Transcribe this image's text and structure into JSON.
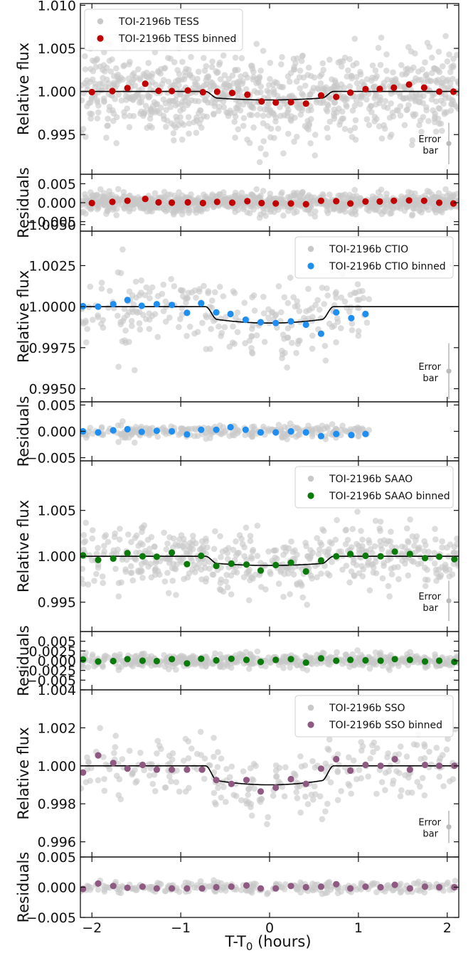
{
  "colors": {
    "raw": "#c8c8c8",
    "model": "#000000",
    "TESS": "#c00000",
    "CTIO": "#1e8ff0",
    "SAAO": "#0a7a0a",
    "SSO": "#8e5a82"
  },
  "xaxis": {
    "label": "T-T",
    "label_sub": "0",
    "label_suffix": " (hours)",
    "xlim": [
      -2.13,
      2.13
    ],
    "ticks": [
      -2,
      -1,
      0,
      1,
      2
    ],
    "tick_labels": [
      "−2",
      "−1",
      "0",
      "1",
      "2"
    ]
  },
  "error_bar_label": [
    "Error",
    "bar"
  ],
  "chart_data": [
    {
      "type": "scatter",
      "name": "TESS",
      "ylabel": "Relative flux",
      "res_ylabel": "Residuals",
      "ylim": [
        0.9904,
        1.0102
      ],
      "yticks": [
        0.995,
        1.0,
        1.005,
        1.01
      ],
      "ytick_labels": [
        "0.995",
        "1.000",
        "1.005",
        "1.010"
      ],
      "res_ylim": [
        -0.0075,
        0.0075
      ],
      "res_yticks": [
        -0.005,
        0.0,
        0.005
      ],
      "res_ytick_labels": [
        "−0.005",
        "0.000",
        "0.005"
      ],
      "legend": [
        "TOI-2196b TESS",
        "TOI-2196b TESS binned"
      ],
      "legend_placement": "top-left",
      "model": {
        "depth": 0.00098,
        "t1": 0.72,
        "ingress": 0.13
      },
      "raw_scatter_sigma": 0.0024,
      "raw_count": 900,
      "raw_xrange": [
        -2.13,
        2.13
      ],
      "error_bar_sigma": 0.0024,
      "binned": {
        "x": [
          -2.0,
          -1.77,
          -1.6,
          -1.4,
          -1.25,
          -1.1,
          -0.92,
          -0.75,
          -0.59,
          -0.42,
          -0.25,
          -0.09,
          0.07,
          0.24,
          0.41,
          0.58,
          0.75,
          0.91,
          1.08,
          1.24,
          1.4,
          1.57,
          1.74,
          1.91,
          2.07
        ],
        "y": [
          0.99993,
          1.00005,
          1.0004,
          1.0009,
          1.00008,
          1.00005,
          1.00012,
          0.99992,
          0.99997,
          0.99983,
          0.99963,
          0.99885,
          0.99872,
          0.99875,
          0.9986,
          0.99955,
          0.99937,
          0.99987,
          1.00027,
          1.0003,
          1.00045,
          1.0008,
          1.00045,
          0.99998,
          0.99998
        ],
        "res": [
          -0.0001,
          0.0002,
          0.0005,
          0.001,
          0.0001,
          0.0,
          0.0001,
          -0.0001,
          0.0002,
          0.0,
          0.0004,
          -0.0001,
          -0.0002,
          -0.0002,
          -0.0004,
          0.0005,
          0.0004,
          -0.0002,
          0.0003,
          0.0003,
          0.0005,
          0.0006,
          0.0005,
          0.0,
          -0.0002
        ]
      }
    },
    {
      "type": "scatter",
      "name": "CTIO",
      "ylabel": "Relative flux",
      "res_ylabel": "Residuals",
      "ylim": [
        0.9942,
        1.0046
      ],
      "yticks": [
        0.995,
        0.9975,
        1.0,
        1.0025,
        1.005
      ],
      "ytick_labels": [
        "0.9950",
        "0.9975",
        "1.0000",
        "1.0025",
        "1.0050"
      ],
      "res_ylim": [
        -0.0056,
        0.0056
      ],
      "res_yticks": [
        -0.005,
        0.0,
        0.005
      ],
      "res_ytick_labels": [
        "−0.005",
        "0.000",
        "0.005"
      ],
      "legend": [
        "TOI-2196b CTIO",
        "TOI-2196b CTIO binned"
      ],
      "legend_placement": "top-right",
      "model": {
        "depth": 0.001,
        "t1": 0.72,
        "ingress": 0.13
      },
      "raw_scatter_sigma": 0.0011,
      "raw_count": 260,
      "raw_xrange": [
        -2.13,
        1.12
      ],
      "error_bar_sigma": 0.0017,
      "binned": {
        "x": [
          -2.1,
          -1.93,
          -1.76,
          -1.6,
          -1.44,
          -1.27,
          -1.1,
          -0.93,
          -0.77,
          -0.6,
          -0.44,
          -0.27,
          -0.1,
          0.07,
          0.24,
          0.41,
          0.58,
          0.75,
          0.92,
          1.08
        ],
        "y": [
          1.00003,
          1.0,
          1.00015,
          1.0004,
          1.00005,
          1.00015,
          1.0001,
          0.99962,
          1.0002,
          0.99965,
          0.99955,
          0.9992,
          0.99905,
          0.999,
          0.9991,
          0.9989,
          0.99835,
          0.99965,
          0.9993,
          0.99955
        ],
        "res": [
          0.0,
          -0.0002,
          0.0002,
          0.0004,
          -0.0001,
          0.0001,
          0.0,
          -0.0006,
          0.0003,
          0.0003,
          0.0008,
          0.0003,
          -0.0002,
          -0.0002,
          0.0,
          -0.0002,
          -0.0009,
          -0.0005,
          -0.0007,
          -0.0005
        ]
      }
    },
    {
      "type": "scatter",
      "name": "SAAO",
      "ylabel": "Relative flux",
      "res_ylabel": "Residuals",
      "ylim": [
        0.9918,
        1.0104
      ],
      "yticks": [
        0.995,
        1.0,
        1.005
      ],
      "ytick_labels": [
        "0.995",
        "1.000",
        "1.005"
      ],
      "res_ylim": [
        -0.0075,
        0.0075
      ],
      "res_yticks": [
        -0.005,
        -0.0025,
        0.0,
        0.0025,
        0.005
      ],
      "res_ytick_labels": [
        "−0.005",
        "−0.0025",
        "0.000",
        "0.0025",
        "0.005"
      ],
      "legend": [
        "TOI-2196b SAAO",
        "TOI-2196b SAAO binned"
      ],
      "legend_placement": "top-right",
      "model": {
        "depth": 0.001,
        "t1": 0.72,
        "ingress": 0.13
      },
      "raw_scatter_sigma": 0.0016,
      "raw_count": 520,
      "raw_xrange": [
        -2.13,
        2.13
      ],
      "error_bar_sigma": 0.0022,
      "binned": {
        "x": [
          -2.1,
          -1.93,
          -1.76,
          -1.6,
          -1.43,
          -1.27,
          -1.1,
          -0.93,
          -0.77,
          -0.6,
          -0.43,
          -0.26,
          -0.1,
          0.07,
          0.24,
          0.41,
          0.58,
          0.75,
          0.91,
          1.08,
          1.25,
          1.41,
          1.58,
          1.75,
          1.91,
          2.08
        ],
        "y": [
          1.0001,
          0.9996,
          0.99975,
          1.00035,
          1.0,
          0.99995,
          1.0004,
          0.99915,
          1.00005,
          0.99895,
          0.9992,
          0.9991,
          0.99845,
          0.99905,
          0.9993,
          0.99835,
          0.99955,
          1.0,
          1.00025,
          1.00005,
          1.0,
          1.0005,
          1.00025,
          0.9998,
          0.99995,
          0.99968
        ],
        "res": [
          0.0003,
          -0.0002,
          -0.0001,
          0.0004,
          0.0,
          -0.0001,
          0.0004,
          -0.0007,
          0.0005,
          0.0001,
          0.0005,
          0.0002,
          -0.0003,
          0.0002,
          0.0004,
          -0.0005,
          0.0006,
          0.0,
          0.0002,
          0.0001,
          0.0,
          0.0004,
          0.0002,
          -0.0002,
          0.0,
          -0.0003
        ]
      }
    },
    {
      "type": "scatter",
      "name": "SSO",
      "ylabel": "Relative flux",
      "res_ylabel": "Residuals",
      "ylim": [
        0.9952,
        1.004
      ],
      "yticks": [
        0.996,
        0.998,
        1.0,
        1.002,
        1.004
      ],
      "ytick_labels": [
        "0.996",
        "0.998",
        "1.000",
        "1.002",
        "1.004"
      ],
      "res_ylim": [
        -0.005,
        0.005
      ],
      "res_yticks": [
        -0.005,
        0.0,
        0.005
      ],
      "res_ytick_labels": [
        "−0.005",
        "0.000",
        "0.005"
      ],
      "legend": [
        "TOI-2196b SSO",
        "TOI-2196b SSO binned"
      ],
      "legend_placement": "top-right",
      "model": {
        "depth": 0.001,
        "t1": 0.72,
        "ingress": 0.13
      },
      "raw_scatter_sigma": 0.00085,
      "raw_count": 270,
      "raw_xrange": [
        -2.13,
        2.13
      ],
      "error_bar_sigma": 0.00085,
      "binned": {
        "x": [
          -2.1,
          -1.93,
          -1.76,
          -1.6,
          -1.43,
          -1.27,
          -1.1,
          -0.93,
          -0.76,
          -0.6,
          -0.43,
          -0.26,
          -0.1,
          0.07,
          0.24,
          0.41,
          0.58,
          0.75,
          0.91,
          1.08,
          1.25,
          1.41,
          1.58,
          1.75,
          1.91,
          2.08
        ],
        "y": [
          0.99965,
          1.00055,
          1.00015,
          0.99985,
          1.00005,
          0.9998,
          0.9998,
          0.9998,
          0.9998,
          0.99925,
          0.99905,
          0.99925,
          0.99865,
          0.99885,
          0.9993,
          0.99905,
          0.99985,
          1.00035,
          0.99975,
          1.00005,
          1.0,
          1.00035,
          0.9998,
          1.00005,
          1.0,
          1.0
        ],
        "res": [
          -0.0003,
          0.0006,
          0.0002,
          -0.0001,
          0.0001,
          -0.0002,
          -0.0002,
          -0.0002,
          -0.0002,
          0.0,
          0.0001,
          0.0003,
          -0.0002,
          -0.0002,
          0.0002,
          0.0,
          0.0001,
          0.0005,
          -0.0002,
          0.0001,
          0.0,
          0.0004,
          -0.0002,
          0.0001,
          0.0,
          0.0
        ]
      }
    }
  ]
}
